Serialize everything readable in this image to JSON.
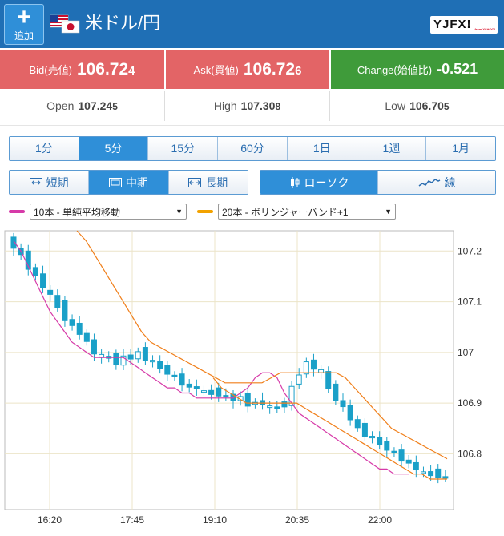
{
  "header": {
    "add_label": "追加",
    "title": "米ドル/円",
    "logo_main": "YJFX!",
    "logo_sub": "from YAHOO!",
    "flag_icons": [
      "us-flag-icon",
      "japan-flag-icon"
    ]
  },
  "quotes": {
    "bid": {
      "label": "Bid(売値)",
      "value_main": "106.72",
      "value_last": "4"
    },
    "ask": {
      "label": "Ask(買値)",
      "value_main": "106.72",
      "value_last": "6"
    },
    "change": {
      "label": "Change(始値比)",
      "value": "-0.521"
    }
  },
  "ohl": {
    "open": {
      "label": "Open",
      "value_main": "107.24",
      "value_last": "5"
    },
    "high": {
      "label": "High",
      "value_main": "107.30",
      "value_last": "8"
    },
    "low": {
      "label": "Low",
      "value_main": "106.70",
      "value_last": "5"
    }
  },
  "periods": [
    {
      "label": "1分",
      "active": false
    },
    {
      "label": "5分",
      "active": true
    },
    {
      "label": "15分",
      "active": false
    },
    {
      "label": "60分",
      "active": false
    },
    {
      "label": "1日",
      "active": false
    },
    {
      "label": "1週",
      "active": false
    },
    {
      "label": "1月",
      "active": false
    }
  ],
  "range_tabs": [
    {
      "label": "短期",
      "icon": "short-range-icon",
      "active": false
    },
    {
      "label": "中期",
      "icon": "mid-range-icon",
      "active": true
    },
    {
      "label": "長期",
      "icon": "long-range-icon",
      "active": false
    }
  ],
  "chart_types": [
    {
      "label": "ローソク",
      "icon": "candlestick-icon",
      "active": true
    },
    {
      "label": "線",
      "icon": "line-chart-icon",
      "active": false
    }
  ],
  "indicators": {
    "ma": {
      "label": "10本 - 単純平均移動",
      "color": "#d63aa8"
    },
    "bb": {
      "label": "20本 - ボリンジャーバンド+1",
      "color": "#f2a200"
    }
  },
  "colors": {
    "header_bg": "#1f6fb5",
    "bid_ask_bg": "#e36466",
    "change_bg": "#3f9b3a",
    "candle": "#1aa0c8",
    "ma_line": "#d63aa8",
    "band_line": "#f07f1a",
    "active_tab": "#2f8fd8"
  },
  "chart_data": {
    "type": "candlestick",
    "x_ticks": [
      "16:20",
      "17:45",
      "19:10",
      "20:35",
      "22:00"
    ],
    "y_ticks": [
      "107.2",
      "107.1",
      "107",
      "106.9",
      "106.8"
    ],
    "ylim": [
      106.69,
      107.24
    ],
    "grid": true,
    "close": [
      107.21,
      107.19,
      107.17,
      107.15,
      107.13,
      107.11,
      107.09,
      107.07,
      107.05,
      107.04,
      107.02,
      107.0,
      106.99,
      106.99,
      106.98,
      106.99,
      106.99,
      107.0,
      106.99,
      106.98,
      106.97,
      106.96,
      106.95,
      106.94,
      106.93,
      106.93,
      106.92,
      106.92,
      106.92,
      106.91,
      106.91,
      106.91,
      106.9,
      106.9,
      106.9,
      106.89,
      106.89,
      106.9,
      106.93,
      106.96,
      106.98,
      106.97,
      106.96,
      106.93,
      106.91,
      106.89,
      106.87,
      106.85,
      106.84,
      106.83,
      106.82,
      106.81,
      106.8,
      106.79,
      106.78,
      106.77,
      106.76,
      106.76,
      106.76,
      106.75
    ],
    "ma10": [
      107.22,
      107.2,
      107.17,
      107.14,
      107.11,
      107.08,
      107.06,
      107.04,
      107.02,
      107.01,
      107.0,
      106.99,
      106.99,
      106.99,
      106.99,
      106.99,
      106.98,
      106.97,
      106.96,
      106.95,
      106.94,
      106.93,
      106.93,
      106.92,
      106.92,
      106.91,
      106.91,
      106.91,
      106.91,
      106.91,
      106.91,
      106.92,
      106.93,
      106.95,
      106.96,
      106.96,
      106.95,
      106.92,
      106.9,
      106.88,
      106.87,
      106.86,
      106.85,
      106.84,
      106.83,
      106.82,
      106.81,
      106.8,
      106.79,
      106.78,
      106.77,
      106.77,
      106.76,
      106.76,
      106.76
    ],
    "band_upper": [
      107.24,
      107.22,
      107.19,
      107.16,
      107.13,
      107.1,
      107.07,
      107.04,
      107.02,
      107.01,
      107.0,
      106.99,
      106.98,
      106.97,
      106.96,
      106.95,
      106.94,
      106.94,
      106.94,
      106.94,
      106.94,
      106.95,
      106.96,
      106.96,
      106.96,
      106.96,
      106.96,
      106.96,
      106.96,
      106.95,
      106.93,
      106.91,
      106.89,
      106.87,
      106.85,
      106.84,
      106.83,
      106.82,
      106.81,
      106.8,
      106.79
    ],
    "band_lower": [
      106.95,
      106.93,
      106.92,
      106.91,
      106.9,
      106.9,
      106.9,
      106.9,
      106.9,
      106.9,
      106.9,
      106.89,
      106.88,
      106.87,
      106.86,
      106.85,
      106.84,
      106.83,
      106.82,
      106.81,
      106.8,
      106.79,
      106.78,
      106.77,
      106.76,
      106.76,
      106.75,
      106.75,
      106.75
    ]
  }
}
